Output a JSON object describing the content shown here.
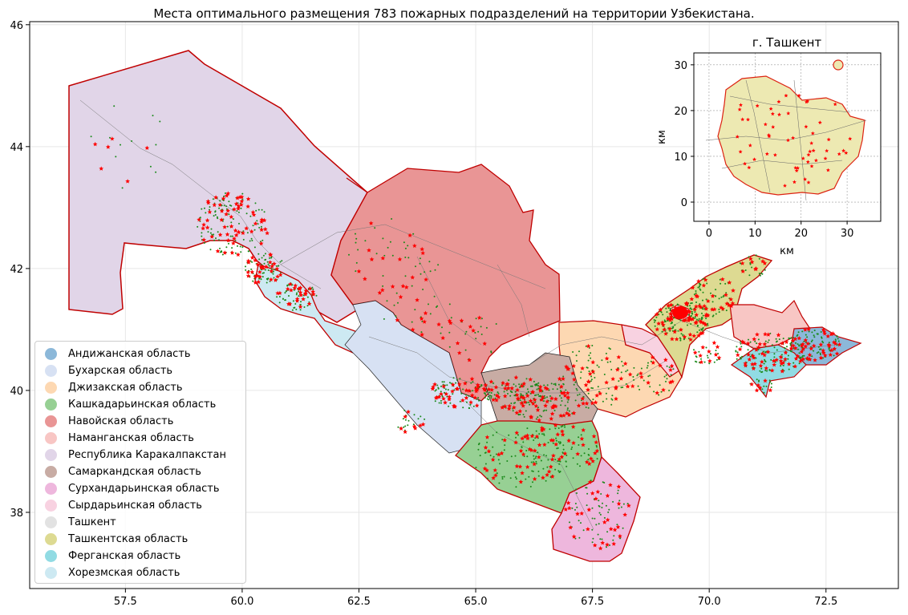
{
  "title": "Места оптимального размещения 783 пожарных подразделений на территории Узбекистана.",
  "main_map": {
    "x_ticks": [
      {
        "value": 57.5,
        "label": "57.5"
      },
      {
        "value": 60.0,
        "label": "60.0"
      },
      {
        "value": 62.5,
        "label": "62.5"
      },
      {
        "value": 65.0,
        "label": "65.0"
      },
      {
        "value": 67.5,
        "label": "67.5"
      },
      {
        "value": 70.0,
        "label": "70.0"
      },
      {
        "value": 72.5,
        "label": "72.5"
      }
    ],
    "y_ticks": [
      {
        "value": 38,
        "label": "38"
      },
      {
        "value": 40,
        "label": "40"
      },
      {
        "value": 42,
        "label": "42"
      },
      {
        "value": 44,
        "label": "44"
      },
      {
        "value": 46,
        "label": "46"
      }
    ],
    "xlim": [
      55.45,
      74.05
    ],
    "ylim": [
      36.75,
      46.05
    ],
    "grid": true,
    "station_marker": "red-star",
    "road_marker": "green-dot"
  },
  "regions": [
    {
      "name": "Андижанская область",
      "color": "#8cb8d9"
    },
    {
      "name": "Бухарская область",
      "color": "#d7e1f3"
    },
    {
      "name": "Джизакская область",
      "color": "#fdd8b2"
    },
    {
      "name": "Кашкадарьинская область",
      "color": "#97d094"
    },
    {
      "name": "Навойская область",
      "color": "#e99595"
    },
    {
      "name": "Наманганская область",
      "color": "#f8c6c4"
    },
    {
      "name": "Республика Каракалпакстан",
      "color": "#e1d5e8"
    },
    {
      "name": "Самаркандская область",
      "color": "#c8aca4"
    },
    {
      "name": "Сурхандарьинская область",
      "color": "#eeb7dd"
    },
    {
      "name": "Сырдарьинская область",
      "color": "#f8d2e1"
    },
    {
      "name": "Ташкент",
      "color": "#e2e2e2"
    },
    {
      "name": "Ташкентская область",
      "color": "#ddda92"
    },
    {
      "name": "Ферганская область",
      "color": "#91dbe3"
    },
    {
      "name": "Хорезмская область",
      "color": "#cde9f2"
    }
  ],
  "inset": {
    "title": "г. Ташкент",
    "xlabel": "км",
    "ylabel": "км",
    "x_ticks": [
      {
        "value": 0,
        "label": "0"
      },
      {
        "value": 10,
        "label": "10"
      },
      {
        "value": 20,
        "label": "20"
      },
      {
        "value": 30,
        "label": "30"
      }
    ],
    "y_ticks": [
      {
        "value": 0,
        "label": "0"
      },
      {
        "value": 10,
        "label": "10"
      },
      {
        "value": 20,
        "label": "20"
      },
      {
        "value": 30,
        "label": "30"
      }
    ],
    "xlim": [
      -3.3,
      37.3
    ],
    "ylim": [
      -4.2,
      32.6
    ],
    "grid": true,
    "fill_color": "#ede9b2"
  }
}
